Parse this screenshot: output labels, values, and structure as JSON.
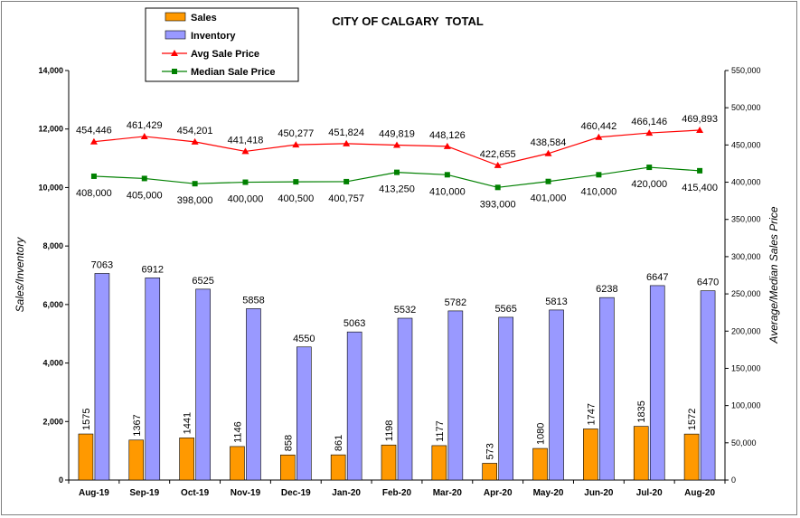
{
  "chart_data": {
    "type": "bar",
    "title": "CITY OF CALGARY  TOTAL",
    "ylabel": "Sales/Inventory",
    "y2label": "Average/Median Sales Price",
    "ylim": [
      0,
      14000
    ],
    "y2lim": [
      0,
      550000
    ],
    "yticks": [
      "0",
      "2,000",
      "4,000",
      "6,000",
      "8,000",
      "10,000",
      "12,000",
      "14,000"
    ],
    "y2ticks": [
      "0",
      "50,000",
      "100,000",
      "150,000",
      "200,000",
      "250,000",
      "300,000",
      "350,000",
      "400,000",
      "450,000",
      "500,000",
      "550,000"
    ],
    "categories": [
      "Aug-19",
      "Sep-19",
      "Oct-19",
      "Nov-19",
      "Dec-19",
      "Jan-20",
      "Feb-20",
      "Mar-20",
      "Apr-20",
      "May-20",
      "Jun-20",
      "Jul-20",
      "Aug-20"
    ],
    "legend_position": "top-left",
    "series": [
      {
        "name": "Sales",
        "kind": "bar",
        "axis": "left",
        "color": "#ff9900",
        "values": [
          1575,
          1367,
          1441,
          1146,
          858,
          861,
          1198,
          1177,
          573,
          1080,
          1747,
          1835,
          1572
        ],
        "labels": [
          "1575",
          "1367",
          "1441",
          "1146",
          "858",
          "861",
          "1198",
          "1177",
          "573",
          "1080",
          "1747",
          "1835",
          "1572"
        ]
      },
      {
        "name": "Inventory",
        "kind": "bar",
        "axis": "left",
        "color": "#9999ff",
        "values": [
          7063,
          6912,
          6525,
          5858,
          4550,
          5063,
          5532,
          5782,
          5565,
          5813,
          6238,
          6647,
          6470
        ],
        "labels": [
          "7063",
          "6912",
          "6525",
          "5858",
          "4550",
          "5063",
          "5532",
          "5782",
          "5565",
          "5813",
          "6238",
          "6647",
          "6470"
        ]
      },
      {
        "name": "Avg Sale Price",
        "kind": "line",
        "axis": "right",
        "color": "#ff0000",
        "marker": "triangle",
        "values": [
          454446,
          461429,
          454201,
          441418,
          450277,
          451824,
          449819,
          448126,
          422655,
          438584,
          460442,
          466146,
          469893
        ],
        "labels": [
          "454,446",
          "461,429",
          "454,201",
          "441,418",
          "450,277",
          "451,824",
          "449,819",
          "448,126",
          "422,655",
          "438,584",
          "460,442",
          "466,146",
          "469,893"
        ]
      },
      {
        "name": "Median Sale Price",
        "kind": "line",
        "axis": "right",
        "color": "#008000",
        "marker": "square",
        "values": [
          408000,
          405000,
          398000,
          400000,
          400500,
          400757,
          413250,
          410000,
          393000,
          401000,
          410000,
          420000,
          415400
        ],
        "labels": [
          "408,000",
          "405,000",
          "398,000",
          "400,000",
          "400,500",
          "400,757",
          "413,250",
          "410,000",
          "393,000",
          "401,000",
          "410,000",
          "420,000",
          "415,400"
        ]
      }
    ]
  }
}
